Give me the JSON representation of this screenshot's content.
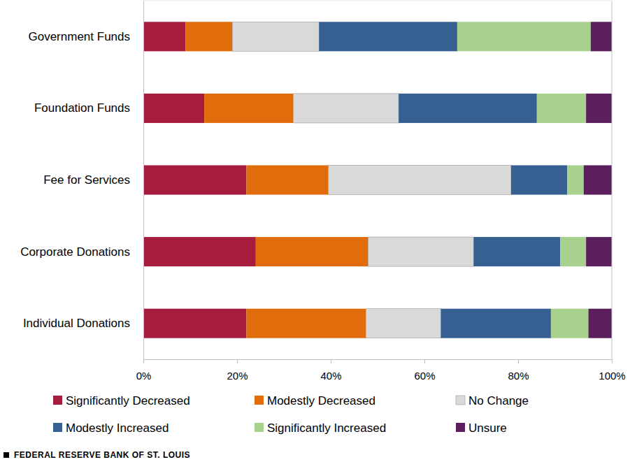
{
  "chart_data": {
    "type": "bar",
    "orientation": "horizontal",
    "stacked": true,
    "grid": false,
    "legend": "bottom",
    "categories": [
      "Government Funds",
      "Foundation Funds",
      "Fee for Services",
      "Corporate Donations",
      "Individual Donations"
    ],
    "series": [
      {
        "name": "Significantly Decreased",
        "color": "#a61c3c",
        "values": [
          9,
          13,
          22,
          24,
          22
        ]
      },
      {
        "name": "Modestly Decreased",
        "color": "#e06c0c",
        "values": [
          10,
          19,
          17.5,
          24,
          25.5
        ]
      },
      {
        "name": "No Change",
        "color": "#d9d9d9",
        "values": [
          18.5,
          22.5,
          39,
          22.5,
          16
        ]
      },
      {
        "name": "Modestly Increased",
        "color": "#366092",
        "values": [
          29.5,
          29.5,
          12,
          18.5,
          23.5
        ]
      },
      {
        "name": "Significantly Increased",
        "color": "#a9d18e",
        "values": [
          28.5,
          10.5,
          3.5,
          5.5,
          8
        ]
      },
      {
        "name": "Unsure",
        "color": "#5b1f5e",
        "values": [
          4.5,
          5.5,
          6,
          5.5,
          5
        ]
      }
    ],
    "xlim": [
      0,
      100
    ],
    "xticks": [
      {
        "value": 0,
        "label": "0%"
      },
      {
        "value": 20,
        "label": "20%"
      },
      {
        "value": 40,
        "label": "40%"
      },
      {
        "value": 60,
        "label": "60%"
      },
      {
        "value": 80,
        "label": "80%"
      },
      {
        "value": 100,
        "label": "100%"
      }
    ],
    "annotations": [
      "FEDERAL RESERVE BANK OF ST. LOUIS"
    ]
  }
}
